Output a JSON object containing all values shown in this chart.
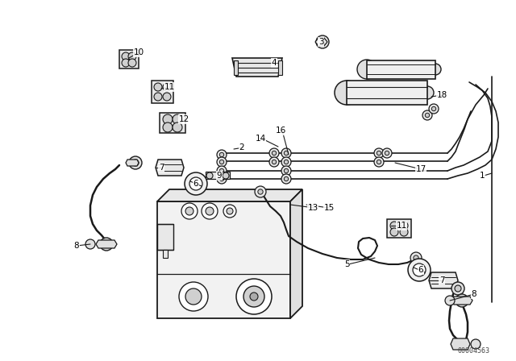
{
  "bg_color": "#ffffff",
  "line_color": "#1a1a1a",
  "diagram_id": "00004563",
  "figsize": [
    6.4,
    4.48
  ],
  "dpi": 100,
  "labels": [
    [
      "1",
      598,
      218
    ],
    [
      "2",
      300,
      183
    ],
    [
      "3",
      398,
      52
    ],
    [
      "4",
      340,
      78
    ],
    [
      "5",
      430,
      328
    ],
    [
      "6",
      243,
      228
    ],
    [
      "6",
      522,
      335
    ],
    [
      "7",
      200,
      208
    ],
    [
      "7",
      548,
      348
    ],
    [
      "8",
      95,
      305
    ],
    [
      "8",
      588,
      365
    ],
    [
      "9",
      272,
      218
    ],
    [
      "10",
      172,
      65
    ],
    [
      "11",
      210,
      108
    ],
    [
      "11",
      498,
      280
    ],
    [
      "12",
      228,
      148
    ],
    [
      "13",
      388,
      258
    ],
    [
      "14",
      323,
      172
    ],
    [
      "15",
      408,
      258
    ],
    [
      "16",
      348,
      162
    ],
    [
      "17",
      522,
      210
    ],
    [
      "18",
      548,
      118
    ]
  ]
}
